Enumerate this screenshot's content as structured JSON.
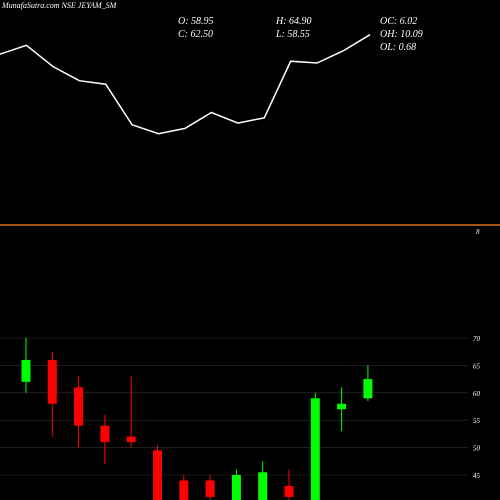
{
  "header": {
    "title": "MunafaSutra.com NSE JEYAM_SM",
    "stats": {
      "o": "O: 58.95",
      "c": "C: 62.50",
      "h": "H: 64.90",
      "l": "L: 58.55",
      "oc": "OC: 6.02",
      "oh": "OH: 10.09",
      "ol": "OL: 0.68"
    }
  },
  "colors": {
    "background": "#000000",
    "line": "#ffffff",
    "separator": "#e07020",
    "bull": "#00ff00",
    "bear": "#ff0000",
    "grid": "#333333"
  },
  "chart_data": [
    {
      "type": "line",
      "x": [
        1,
        2,
        3,
        4,
        5,
        6,
        7,
        8,
        9,
        10,
        11,
        12,
        13,
        14,
        15
      ],
      "y": [
        0.95,
        1.0,
        0.88,
        0.8,
        0.78,
        0.55,
        0.5,
        0.53,
        0.62,
        0.56,
        0.59,
        0.91,
        0.9,
        0.97,
        1.06
      ],
      "ylim": [
        0,
        1.2
      ],
      "y_tick_labels": [
        "8"
      ]
    },
    {
      "type": "candlestick",
      "ylim": [
        45,
        72
      ],
      "y_ticks": [
        45,
        50,
        55,
        60,
        65,
        70
      ],
      "grid": true,
      "candles": [
        {
          "open": 62.0,
          "close": 66.0,
          "high": 70.0,
          "low": 60.0
        },
        {
          "open": 66.0,
          "close": 58.0,
          "high": 67.5,
          "low": 52.0
        },
        {
          "open": 61.0,
          "close": 54.0,
          "high": 63.0,
          "low": 50.0
        },
        {
          "open": 54.0,
          "close": 51.0,
          "high": 56.0,
          "low": 47.0
        },
        {
          "open": 52.0,
          "close": 51.0,
          "high": 63.0,
          "low": 50.0
        },
        {
          "open": 49.5,
          "close": 40.0,
          "high": 50.5,
          "low": 38.0
        },
        {
          "open": 44.0,
          "close": 40.0,
          "high": 45.0,
          "low": 38.0
        },
        {
          "open": 44.0,
          "close": 41.0,
          "high": 45.0,
          "low": 40.0
        },
        {
          "open": 40.0,
          "close": 45.0,
          "high": 46.0,
          "low": 39.0
        },
        {
          "open": 40.0,
          "close": 45.5,
          "high": 47.5,
          "low": 38.0
        },
        {
          "open": 43.0,
          "close": 41.0,
          "high": 46.0,
          "low": 40.0
        },
        {
          "open": 40.0,
          "close": 59.0,
          "high": 60.0,
          "low": 38.0
        },
        {
          "open": 57.0,
          "close": 58.0,
          "high": 61.0,
          "low": 53.0
        },
        {
          "open": 59.0,
          "close": 62.5,
          "high": 65.0,
          "low": 58.5
        }
      ]
    }
  ]
}
